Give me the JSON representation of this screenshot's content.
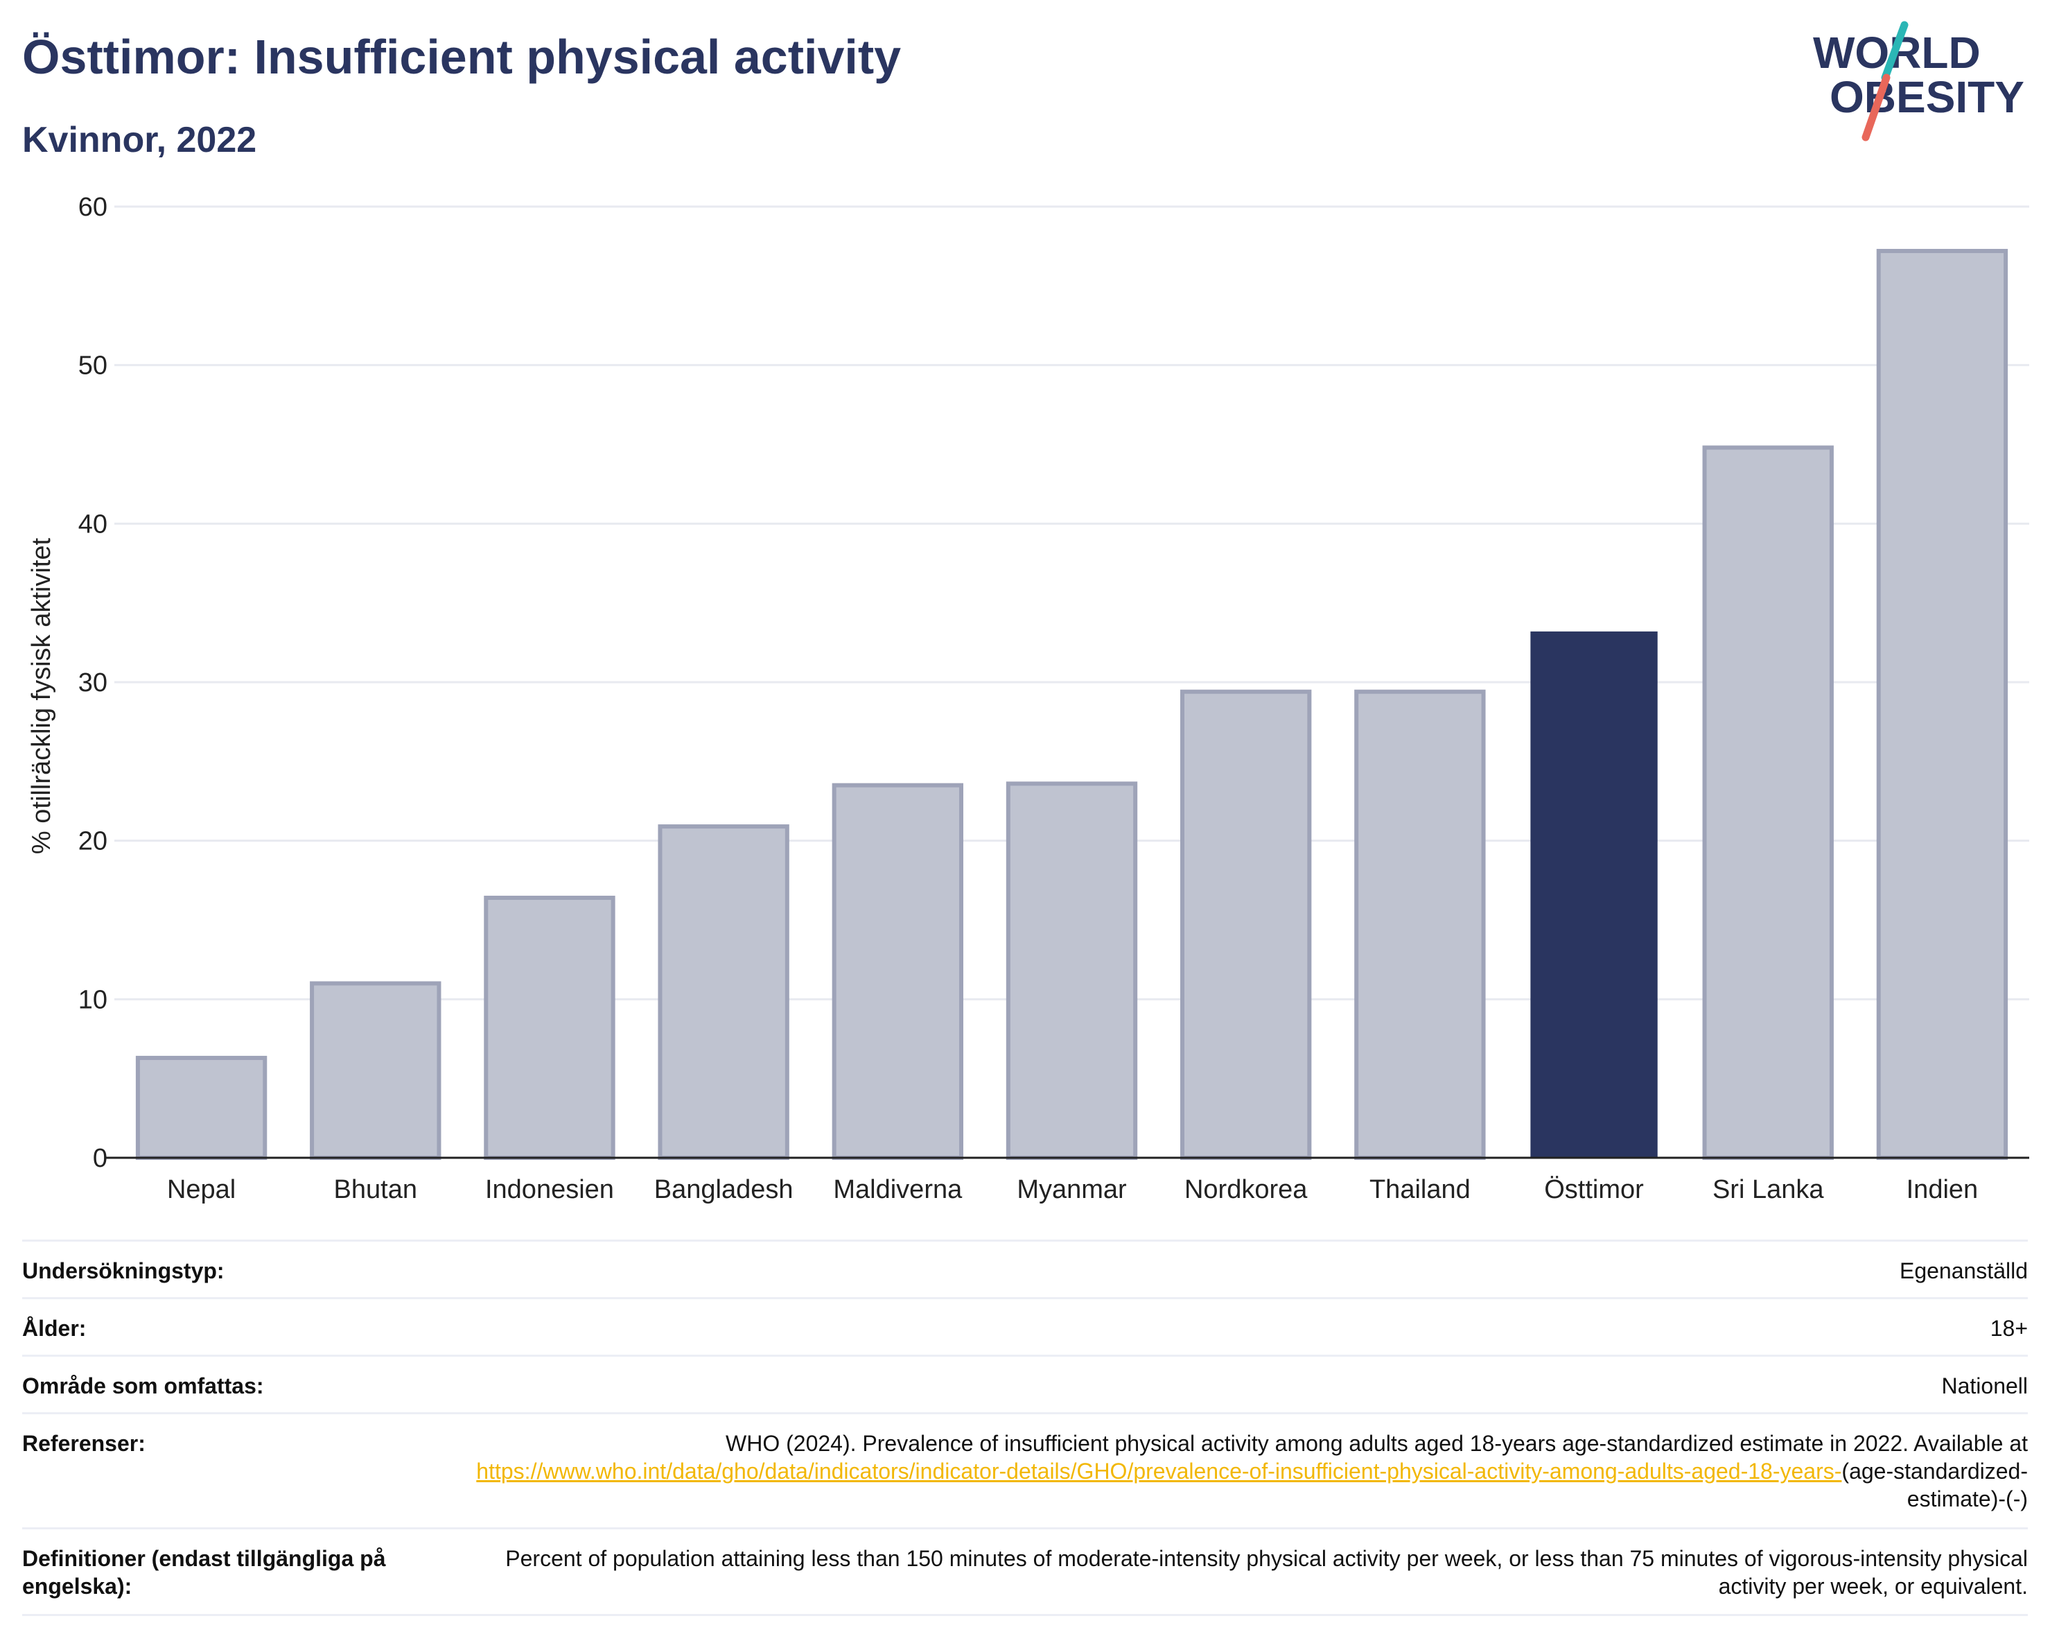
{
  "header": {
    "title": "Östtimor: Insufficient physical activity",
    "subtitle": "Kvinnor, 2022"
  },
  "logo": {
    "line1": "WORLD",
    "line2": "OBESITY",
    "colors": {
      "text": "#2a3560",
      "slash_teal": "#2bb6b5",
      "slash_red": "#e8675a"
    }
  },
  "colors": {
    "highlight_bar": "#2a3560",
    "other_bar_fill": "#bfc3d0",
    "other_bar_stroke": "#9ea3b8",
    "gridline": "#e8eaf0",
    "axis": "#222222"
  },
  "chart_data": {
    "type": "bar",
    "title": "",
    "xlabel": "",
    "ylabel": "% otillräcklig fysisk aktivitet",
    "ylim": [
      0,
      60
    ],
    "yticks": [
      0,
      10,
      20,
      30,
      40,
      50,
      60
    ],
    "grid": true,
    "highlight": "Östtimor",
    "categories": [
      "Nepal",
      "Bhutan",
      "Indonesien",
      "Bangladesh",
      "Maldiverna",
      "Myanmar",
      "Nordkorea",
      "Thailand",
      "Östtimor",
      "Sri Lanka",
      "Indien"
    ],
    "values": [
      6.3,
      11.0,
      16.4,
      20.9,
      23.5,
      23.6,
      29.4,
      29.4,
      33.2,
      44.8,
      57.2
    ]
  },
  "info_table": {
    "survey_type": {
      "label": "Undersökningstyp:",
      "value": "Egenanställd"
    },
    "age": {
      "label": "Ålder:",
      "value": "18+"
    },
    "coverage": {
      "label": "Område som omfattas:",
      "value": "Nationell"
    },
    "references": {
      "label": "Referenser:",
      "text_before": "WHO (2024). Prevalence of insufficient physical activity among adults aged 18-years age-standardized estimate in 2022. Available at",
      "link_text": "https://www.who.int/data/gho/data/indicators/indicator-details/GHO/prevalence-of-insufficient-physical-activity-among-adults-aged-18-years-",
      "text_after": "(age-standardized-estimate)-(-)"
    },
    "definitions": {
      "label": "Definitioner (endast tillgängliga på engelska):",
      "value": "Percent of population attaining less than 150 minutes of moderate-intensity physical activity per week, or less than 75 minutes of vigorous-intensity physical activity per week, or equivalent."
    }
  }
}
